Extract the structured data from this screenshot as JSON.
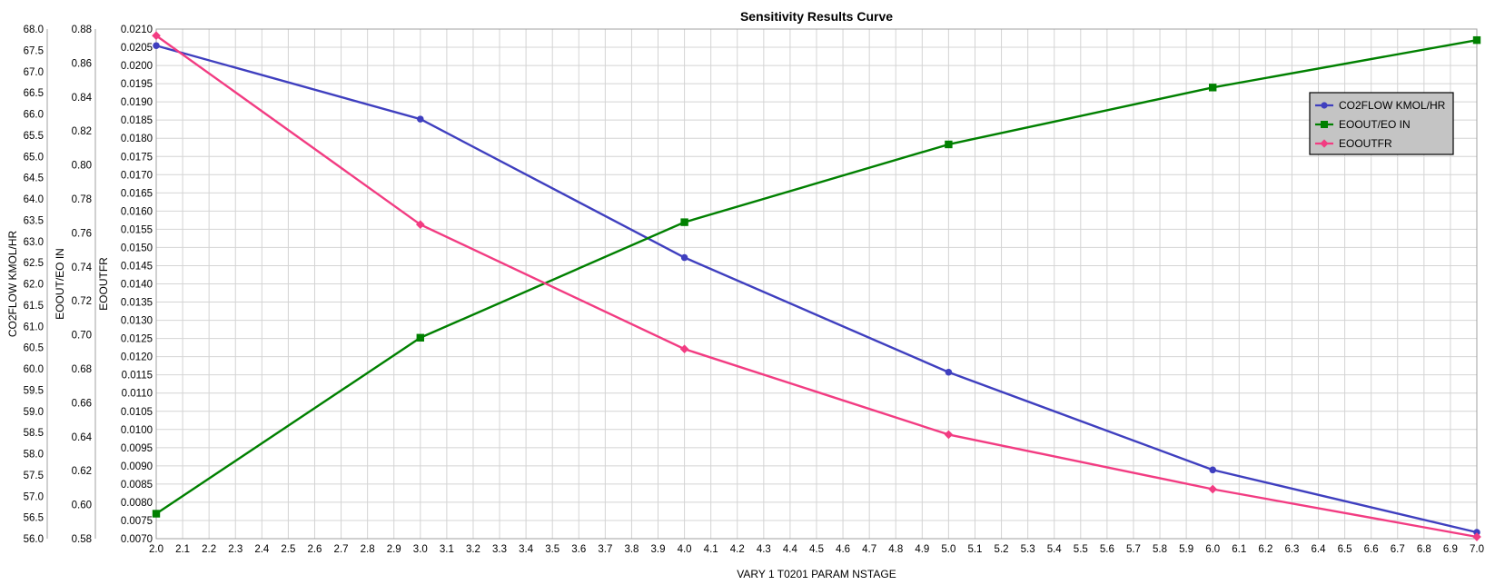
{
  "chart_data": {
    "type": "line",
    "title": "Sensitivity Results Curve",
    "xlabel": "VARY   1 T0201 PARAM NSTAGE",
    "xlim": [
      2.0,
      7.0
    ],
    "x_ticks": [
      "2.0",
      "2.1",
      "2.2",
      "2.3",
      "2.4",
      "2.5",
      "2.6",
      "2.7",
      "2.8",
      "2.9",
      "3.0",
      "3.1",
      "3.2",
      "3.3",
      "3.4",
      "3.5",
      "3.6",
      "3.7",
      "3.8",
      "3.9",
      "4.0",
      "4.1",
      "4.2",
      "4.3",
      "4.4",
      "4.5",
      "4.6",
      "4.7",
      "4.8",
      "4.9",
      "5.0",
      "5.1",
      "5.2",
      "5.3",
      "5.4",
      "5.5",
      "5.6",
      "5.7",
      "5.8",
      "5.9",
      "6.0",
      "6.1",
      "6.2",
      "6.3",
      "6.4",
      "6.5",
      "6.6",
      "6.7",
      "6.8",
      "6.9",
      "7.0"
    ],
    "grid": true,
    "legend_position": "top-right",
    "x": [
      2.0,
      3.0,
      4.0,
      5.0,
      6.0,
      7.0
    ],
    "axes": [
      {
        "label": "CO2FLOW KMOL/HR",
        "ylim": [
          56.0,
          68.0
        ],
        "ticks": [
          "56.0",
          "56.5",
          "57.0",
          "57.5",
          "58.0",
          "58.5",
          "59.0",
          "59.5",
          "60.0",
          "60.5",
          "61.0",
          "61.5",
          "62.0",
          "62.5",
          "63.0",
          "63.5",
          "64.0",
          "64.5",
          "65.0",
          "65.5",
          "66.0",
          "66.5",
          "67.0",
          "67.5",
          "68.0"
        ]
      },
      {
        "label": "EOOUT/EO IN",
        "ylim": [
          0.58,
          0.88
        ],
        "ticks": [
          "0.58",
          "0.60",
          "0.62",
          "0.64",
          "0.66",
          "0.68",
          "0.70",
          "0.72",
          "0.74",
          "0.76",
          "0.78",
          "0.80",
          "0.82",
          "0.84",
          "0.86",
          "0.88"
        ]
      },
      {
        "label": "EOOUTFR",
        "ylim": [
          0.007,
          0.021
        ],
        "ticks": [
          "0.0070",
          "0.0075",
          "0.0080",
          "0.0085",
          "0.0090",
          "0.0095",
          "0.0100",
          "0.0105",
          "0.0110",
          "0.0115",
          "0.0120",
          "0.0125",
          "0.0130",
          "0.0135",
          "0.0140",
          "0.0145",
          "0.0150",
          "0.0155",
          "0.0160",
          "0.0165",
          "0.0170",
          "0.0175",
          "0.0180",
          "0.0185",
          "0.0190",
          "0.0195",
          "0.0200",
          "0.0205",
          "0.0210"
        ]
      }
    ],
    "series": [
      {
        "name": "CO2FLOW KMOL/HR",
        "axis": 0,
        "color": "#3f3fbf",
        "marker": "circle",
        "values": [
          67.61,
          65.88,
          62.62,
          59.92,
          57.62,
          56.15
        ]
      },
      {
        "name": "EOOUT/EO IN",
        "axis": 1,
        "color": "#008000",
        "marker": "square",
        "values": [
          0.5947,
          0.6983,
          0.7663,
          0.8121,
          0.8456,
          0.8735
        ]
      },
      {
        "name": "EOOUTFR",
        "axis": 2,
        "color": "#f23c82",
        "marker": "diamond",
        "values": [
          0.02082,
          0.01563,
          0.01221,
          0.00986,
          0.00836,
          0.00705
        ]
      }
    ]
  }
}
